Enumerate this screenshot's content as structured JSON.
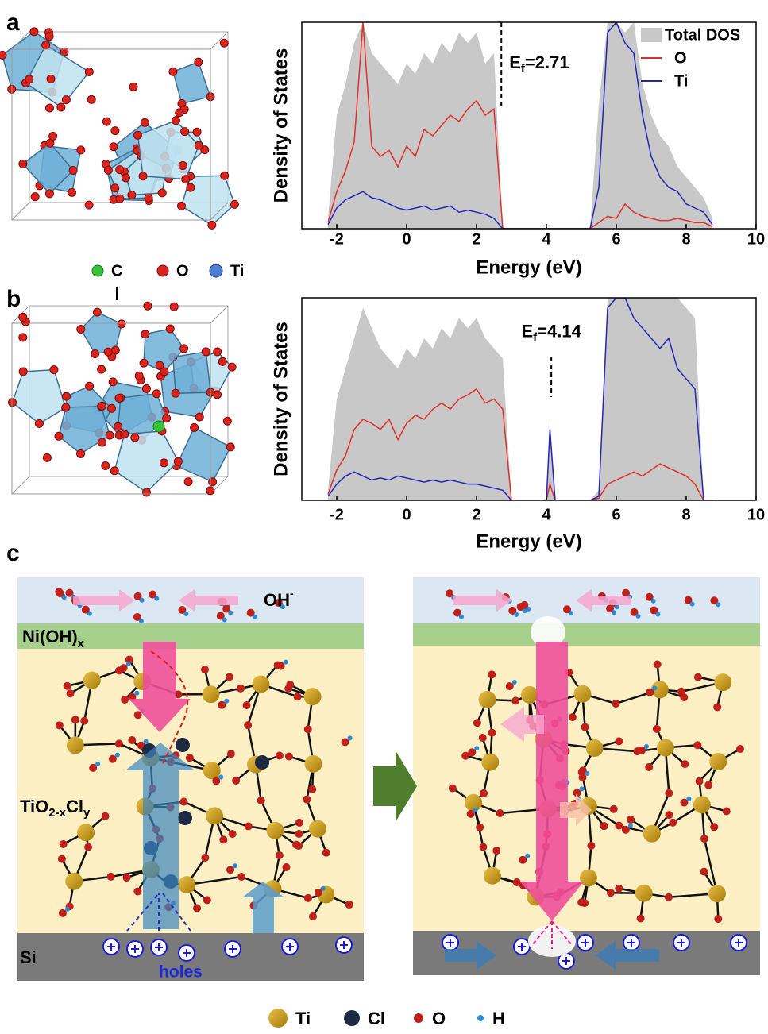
{
  "panel_labels": [
    "a",
    "b",
    "c"
  ],
  "chart_data": [
    {
      "type": "line",
      "x": [
        -2.25,
        -2,
        -1.75,
        -1.5,
        -1.25,
        -1,
        -0.75,
        -0.5,
        -0.25,
        0,
        0.25,
        0.5,
        0.75,
        1,
        1.25,
        1.5,
        1.75,
        2,
        2.25,
        2.5,
        2.75,
        3,
        3.25,
        3.5,
        3.75,
        4,
        4.25,
        4.5,
        4.75,
        5,
        5.25,
        5.5,
        5.75,
        6,
        6.25,
        6.5,
        6.75,
        7,
        7.25,
        7.5,
        7.75,
        8,
        8.25,
        8.5,
        8.75
      ],
      "series": [
        {
          "name": "Total DOS",
          "color": "#c8c8c8",
          "style": "area",
          "values": [
            5,
            55,
            70,
            90,
            100,
            85,
            80,
            75,
            70,
            80,
            75,
            85,
            80,
            90,
            85,
            95,
            90,
            95,
            80,
            85,
            0,
            0,
            0,
            0,
            0,
            0,
            0,
            0,
            0,
            0,
            0,
            60,
            100,
            100,
            95,
            100,
            70,
            55,
            45,
            40,
            30,
            25,
            20,
            15,
            5
          ]
        },
        {
          "name": "O",
          "color": "#e0302a",
          "style": "line",
          "values": [
            3,
            18,
            28,
            42,
            100,
            40,
            35,
            38,
            30,
            40,
            35,
            48,
            45,
            50,
            55,
            52,
            58,
            62,
            55,
            58,
            0,
            0,
            0,
            0,
            0,
            0,
            0,
            0,
            0,
            0,
            0,
            3,
            6,
            5,
            12,
            8,
            6,
            5,
            4,
            4,
            5,
            4,
            3,
            3,
            1
          ]
        },
        {
          "name": "Ti",
          "color": "#2424b8",
          "style": "line",
          "values": [
            2,
            10,
            14,
            16,
            18,
            15,
            14,
            12,
            10,
            9,
            10,
            11,
            9,
            10,
            11,
            8,
            9,
            8,
            7,
            5,
            0,
            0,
            0,
            0,
            0,
            0,
            0,
            0,
            0,
            0,
            0,
            20,
            95,
            100,
            90,
            85,
            55,
            35,
            25,
            20,
            18,
            12,
            10,
            8,
            2
          ]
        }
      ],
      "xlabel": "Energy (eV)",
      "ylabel": "Density of States",
      "xlim": [
        -3,
        10
      ],
      "xticks": [
        -2,
        0,
        2,
        4,
        6,
        8,
        10
      ],
      "ylim": [
        0,
        100
      ],
      "legend": "upper right",
      "fermi_level": 2.71,
      "fermi_label": {
        "symbol": "E",
        "subscript": "f",
        "text": "=2.71"
      }
    },
    {
      "type": "line",
      "x": [
        -2.25,
        -2,
        -1.75,
        -1.5,
        -1.25,
        -1,
        -0.75,
        -0.5,
        -0.25,
        0,
        0.25,
        0.5,
        0.75,
        1,
        1.25,
        1.5,
        1.75,
        2,
        2.25,
        2.5,
        2.75,
        3,
        3.25,
        3.5,
        3.75,
        4,
        4.1,
        4.25,
        4.5,
        4.75,
        5,
        5.25,
        5.5,
        5.75,
        6,
        6.25,
        6.5,
        6.75,
        7,
        7.25,
        7.5,
        7.75,
        8,
        8.25,
        8.5,
        8.75
      ],
      "series": [
        {
          "color": "#c8c8c8",
          "style": "area",
          "values": [
            5,
            50,
            65,
            80,
            95,
            85,
            75,
            70,
            65,
            75,
            70,
            80,
            75,
            85,
            80,
            90,
            85,
            90,
            80,
            75,
            70,
            0,
            0,
            0,
            0,
            0,
            40,
            0,
            0,
            0,
            0,
            0,
            5,
            100,
            100,
            100,
            100,
            100,
            100,
            100,
            100,
            100,
            95,
            90,
            0,
            0
          ]
        },
        {
          "color": "#e0302a",
          "style": "line",
          "values": [
            3,
            15,
            22,
            35,
            40,
            38,
            35,
            40,
            30,
            38,
            42,
            40,
            45,
            48,
            45,
            50,
            52,
            55,
            48,
            50,
            45,
            0,
            0,
            0,
            0,
            0,
            8,
            0,
            0,
            0,
            0,
            0,
            1,
            8,
            10,
            12,
            14,
            12,
            15,
            18,
            16,
            14,
            12,
            8,
            0,
            0
          ]
        },
        {
          "color": "#2424b8",
          "style": "line",
          "values": [
            2,
            8,
            12,
            14,
            12,
            10,
            11,
            10,
            12,
            11,
            10,
            9,
            10,
            9,
            10,
            9,
            8,
            8,
            7,
            6,
            5,
            0,
            0,
            0,
            0,
            0,
            35,
            0,
            0,
            0,
            0,
            0,
            2,
            95,
            100,
            100,
            90,
            85,
            80,
            75,
            80,
            65,
            60,
            55,
            0,
            0
          ]
        }
      ],
      "xlabel": "Energy (eV)",
      "ylabel": "Density of States",
      "xlim": [
        -3,
        10
      ],
      "xticks": [
        -2,
        0,
        2,
        4,
        6,
        8,
        10
      ],
      "ylim": [
        0,
        100
      ],
      "fermi_level": 4.14,
      "fermi_label": {
        "symbol": "E",
        "subscript": "f",
        "text": "=4.14"
      }
    }
  ],
  "structure_legend": [
    "C",
    "O",
    "Ti"
  ],
  "scheme": {
    "oh": {
      "text": "OH",
      "superscript": "-"
    },
    "cocatalyst": {
      "text": "Ni(OH)",
      "subscript": "x"
    },
    "film": {
      "text": "TiO",
      "subscript": "2-x",
      "text2": "Cl",
      "subscript2": "y"
    },
    "substrate": "Si",
    "holes": "holes"
  },
  "atom_legend": [
    "Ti",
    "Cl",
    "O",
    "H"
  ]
}
